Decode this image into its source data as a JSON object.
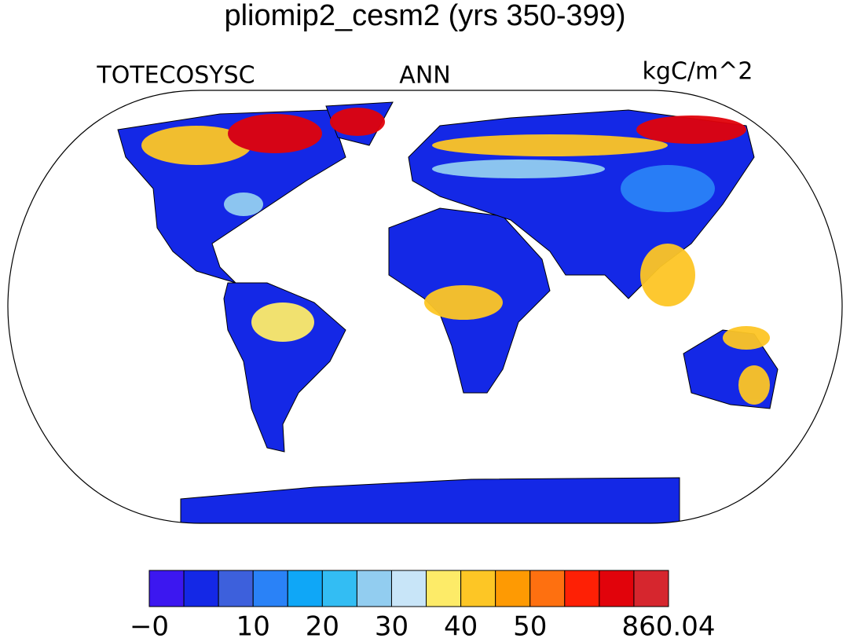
{
  "title": "pliomip2_cesm2 (yrs 350-399)",
  "left_label": "TOTECOSYSC",
  "center_label": "ANN",
  "right_label": "kgC/m^2",
  "colorbar": {
    "colors": [
      "#3c17f0",
      "#1428e6",
      "#3d60dc",
      "#2a82f7",
      "#0fa7f7",
      "#33bdf3",
      "#92cdf0",
      "#c8e5f8",
      "#fdeb68",
      "#fdc625",
      "#fe9a03",
      "#fe7010",
      "#fe2005",
      "#e1030b",
      "#d6262e"
    ],
    "levels": [
      0,
      5,
      10,
      15,
      20,
      25,
      30,
      35,
      40,
      45,
      50,
      55,
      60,
      65
    ],
    "min": {
      "value": 0,
      "label": "−0"
    },
    "max": 860.04,
    "ticks": [
      10,
      20,
      30,
      40,
      50
    ]
  }
}
